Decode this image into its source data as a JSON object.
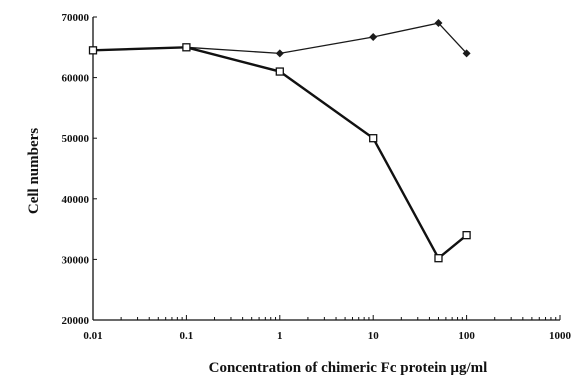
{
  "chart_data": {
    "type": "line",
    "xlabel": "Concentration of chimeric Fc protein µg/ml",
    "ylabel": "Cell numbers",
    "xscale": "log",
    "xlim": [
      0.01,
      1000
    ],
    "ylim": [
      20000,
      70000
    ],
    "x_ticks": [
      0.01,
      0.1,
      1,
      10,
      100,
      1000
    ],
    "x_tick_labels": [
      "0.01",
      "0.1",
      "1",
      "10",
      "100",
      "1000"
    ],
    "y_ticks": [
      20000,
      30000,
      40000,
      50000,
      60000,
      70000
    ],
    "y_tick_labels": [
      "20000",
      "30000",
      "40000",
      "50000",
      "60000",
      "70000"
    ],
    "grid": false,
    "legend": "none",
    "series": [
      {
        "marker": "diamond",
        "x": [
          0.01,
          0.1,
          1,
          10,
          50,
          100
        ],
        "y": [
          64500,
          65000,
          64000,
          66700,
          69000,
          64000
        ],
        "color": "#1a1a1a"
      },
      {
        "marker": "square-open",
        "x": [
          0.01,
          0.1,
          1,
          10,
          50,
          100
        ],
        "y": [
          64500,
          65000,
          61000,
          50000,
          30200,
          34000
        ],
        "color": "#111111"
      }
    ]
  }
}
